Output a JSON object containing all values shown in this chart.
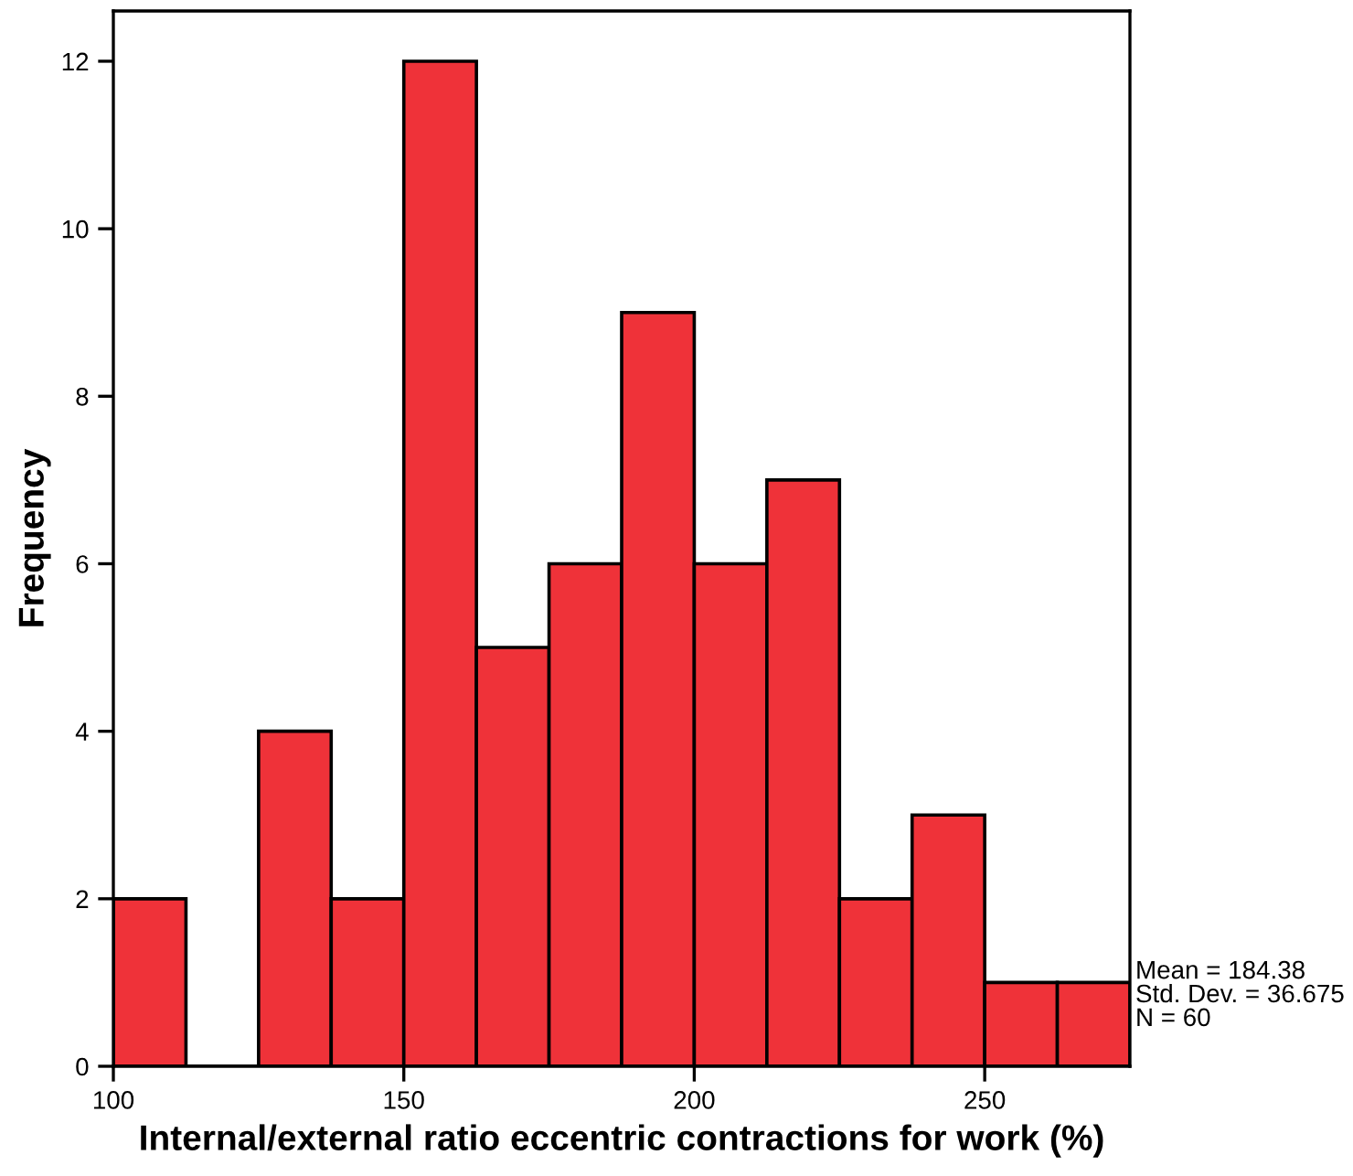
{
  "chart_data": {
    "type": "histogram",
    "xlabel": "Internal/external ratio eccentric contractions for work (%)",
    "ylabel": "Frequency",
    "bins": [
      100,
      112.5,
      125,
      137.5,
      150,
      162.5,
      175,
      187.5,
      200,
      212.5,
      225,
      237.5,
      250,
      262.5,
      275
    ],
    "values": [
      2,
      0,
      4,
      2,
      12,
      5,
      6,
      9,
      6,
      7,
      2,
      3,
      1,
      1
    ],
    "color": "#ef3239",
    "xlim": [
      100,
      275
    ],
    "xticks": [
      100,
      150,
      200,
      250
    ],
    "ylim": [
      0,
      12.6
    ],
    "yticks": [
      0,
      2,
      4,
      6,
      8,
      10,
      12
    ],
    "grid": false,
    "legend": false,
    "annotations": [
      "Mean = 184.38\nStd. Dev. = 36.675\nN = 60"
    ]
  }
}
